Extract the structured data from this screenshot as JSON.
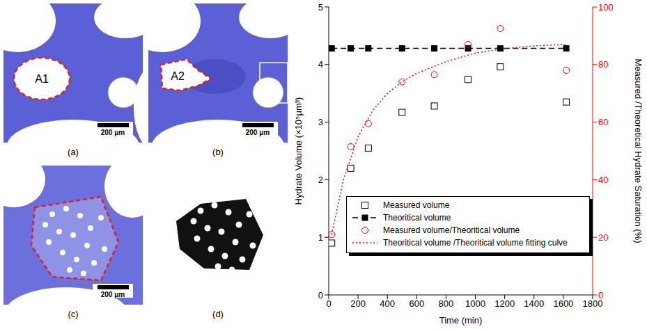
{
  "chart_data": {
    "type": "line",
    "x_label": "Time (min)",
    "y_label": "Hydrate Volume (×10⁵μm³)",
    "y2_label": "Measured /Theoretical Hydrate Saturation (%)",
    "xlim": [
      0,
      1800
    ],
    "xticks": [
      0,
      200,
      400,
      600,
      800,
      1000,
      1200,
      1400,
      1600,
      1800
    ],
    "ylim": [
      0,
      5
    ],
    "yticks": [
      0,
      1,
      2,
      3,
      4,
      5
    ],
    "y2lim": [
      0,
      100
    ],
    "y2ticks": [
      0,
      20,
      40,
      60,
      80,
      100
    ],
    "grid": false,
    "legend": "lower right",
    "series": [
      {
        "name": "Measured volume",
        "type": "scatter",
        "color": "#000000",
        "marker": "open_square",
        "x": [
          20,
          150,
          270,
          500,
          720,
          950,
          1170,
          1620
        ],
        "values": [
          0.9,
          2.2,
          2.55,
          3.17,
          3.28,
          3.74,
          3.96,
          3.35
        ]
      },
      {
        "name": "Theoritical volume",
        "type": "line",
        "color": "#000000",
        "marker": "filled_square",
        "line_style": "dashed",
        "x": [
          20,
          150,
          270,
          500,
          720,
          950,
          1170,
          1620
        ],
        "values": [
          4.28,
          4.28,
          4.28,
          4.28,
          4.28,
          4.28,
          4.28,
          4.28
        ]
      },
      {
        "name": "Measured volume/Theoritical volume",
        "type": "scatter",
        "color": "#ff0000",
        "marker": "open_circle",
        "axis": "y2",
        "x": [
          20,
          150,
          270,
          500,
          720,
          950,
          1170,
          1620
        ],
        "values": [
          21,
          51.5,
          59.5,
          74,
          76.5,
          87,
          92.5,
          78
        ]
      },
      {
        "name": "Theoritical volume /Theoritical volume fitting culve",
        "type": "line",
        "color": "#ff0000",
        "line_style": "dotted",
        "axis": "y2",
        "x": [
          20,
          100,
          200,
          300,
          400,
          500,
          600,
          800,
          1000,
          1200,
          1400,
          1620
        ],
        "values": [
          21,
          40,
          55,
          64,
          70,
          74,
          77,
          81,
          84,
          85.5,
          86.5,
          87
        ]
      }
    ]
  },
  "image_panels": [
    {
      "label": "(a)",
      "annotation": "A1",
      "scale_bar": "200 μm"
    },
    {
      "label": "(b)",
      "annotation": "A2",
      "scale_bar": "200 μm"
    },
    {
      "label": "(c)",
      "scale_bar": "200 μm"
    },
    {
      "label": "(d)"
    }
  ]
}
